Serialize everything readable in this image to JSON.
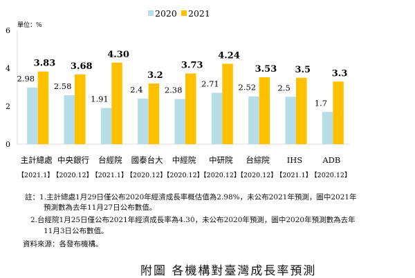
{
  "chart_data": {
    "type": "bar",
    "unit_label": "單位：%",
    "categories": [
      "主計總處",
      "中央銀行",
      "台經院",
      "國泰台大",
      "中經院",
      "中研院",
      "台綜院",
      "IHS",
      "ADB"
    ],
    "dates": [
      "【2021.1】",
      "【2020.12】",
      "【2021.1】",
      "【2020.12】",
      "【2020.12】",
      "【2020.12】",
      "【2020.12】",
      "【2021.1】",
      "【2020.12】"
    ],
    "series": [
      {
        "name": "2020",
        "color": "#b7dde8",
        "values": [
          2.98,
          2.58,
          1.91,
          2.4,
          2.38,
          2.71,
          2.52,
          2.5,
          1.7
        ],
        "labels": [
          "2.98",
          "2.58",
          "1.91",
          "2.4",
          "2.38",
          "2.71",
          "2.52",
          "2.5",
          "1.7"
        ]
      },
      {
        "name": "2021",
        "color": "#ffc000",
        "values": [
          3.83,
          3.68,
          4.3,
          3.2,
          3.73,
          4.24,
          3.53,
          3.5,
          3.3
        ],
        "labels": [
          "3.83",
          "3.68",
          "4.30",
          "3.2",
          "3.73",
          "4.24",
          "3.53",
          "3.5",
          "3.3"
        ]
      }
    ],
    "ylim": [
      0,
      6
    ],
    "yticks": [
      "0",
      "2",
      "4",
      "6"
    ],
    "legend": "top-center"
  },
  "notes": {
    "n1a": "註：1.主計總處1月29日僅公布2020年經濟成長率概估值為2.98%，未公布2021年預測，圖中2021年",
    "n1b": "預測數為去年11月27日公布數值。",
    "n2a": "2.台經院1月25日僅公布2021年經濟成長率為4.30，未公布2020年預測，圖中2020年預測數為去年",
    "n2b": "11月3日公布數值。",
    "source": "資料來源：各發布機構。"
  },
  "caption": "附圖 各機構對臺灣成長率預測"
}
